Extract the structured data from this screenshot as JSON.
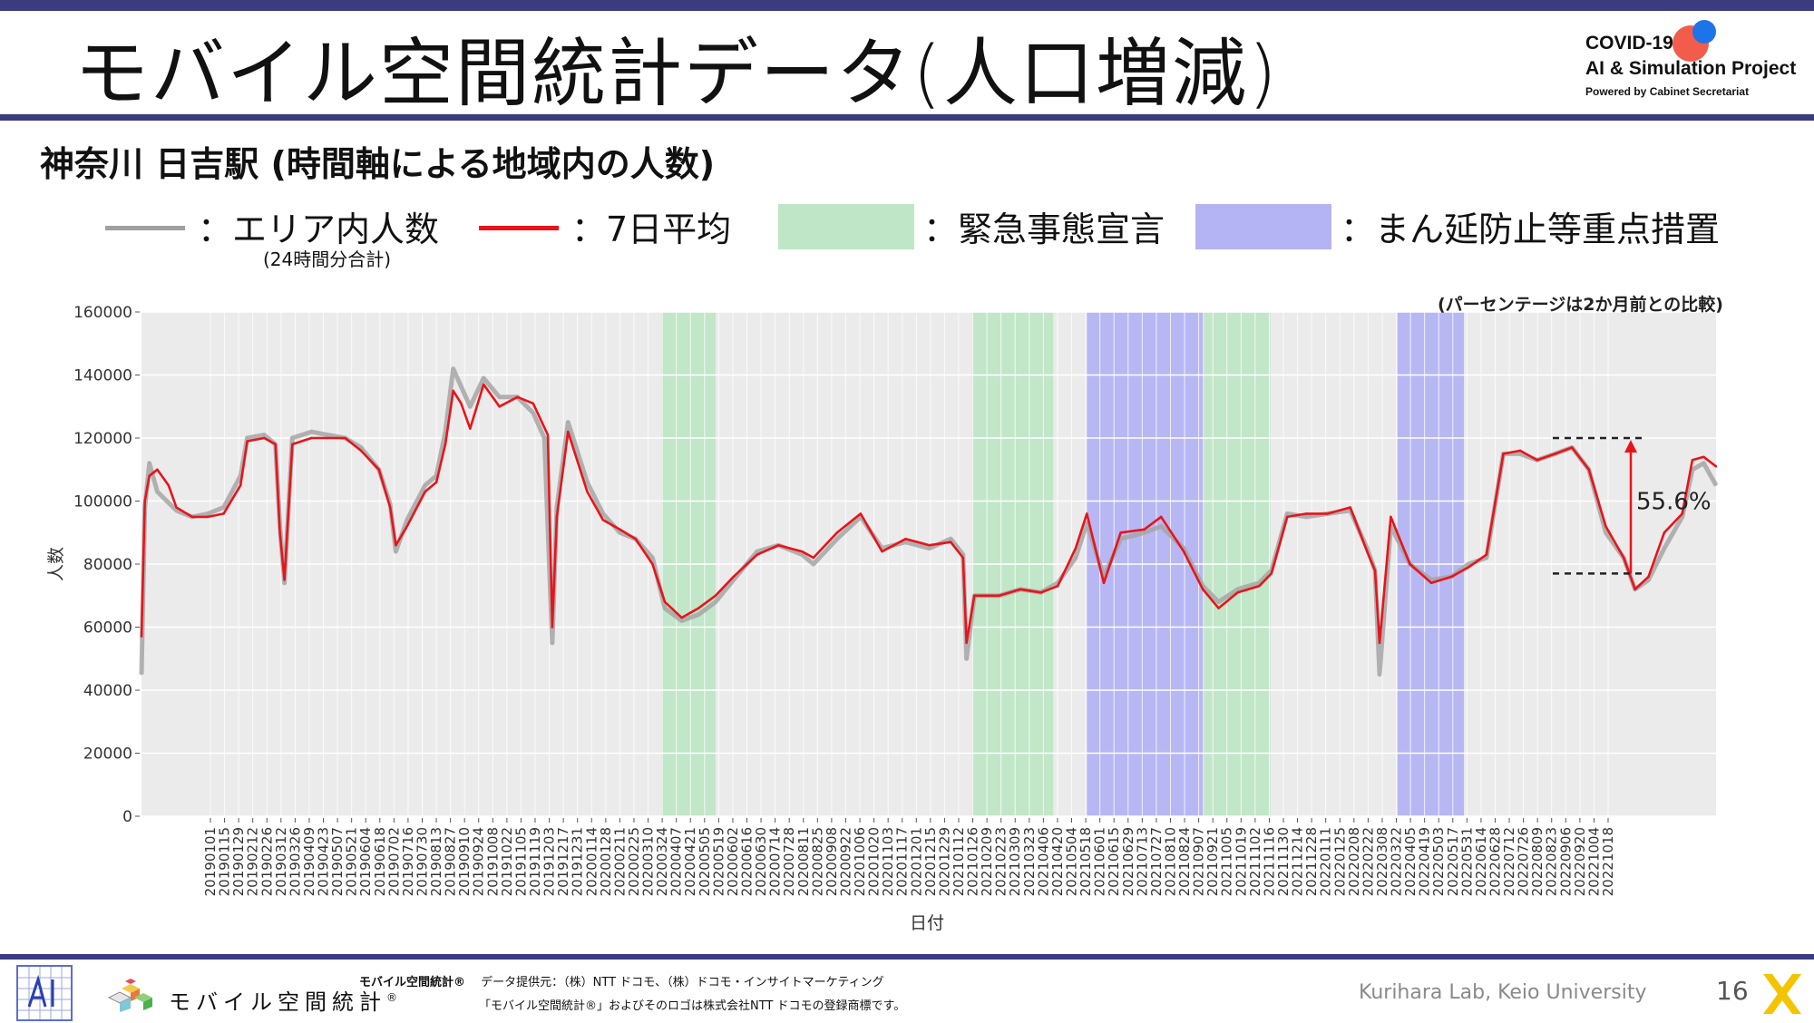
{
  "slide": {
    "title": "モバイル空間統計データ(人口増減)",
    "subtitle": "神奈川 日吉駅 (時間軸による地域内の人数)",
    "page_number": "16",
    "credit": "Kurihara Lab, Keio University"
  },
  "logo": {
    "line1": "COVID-19",
    "line2": "AI & Simulation Project",
    "line3": "Powered by Cabinet Secretariat"
  },
  "legend": {
    "area_people": "：エリア内人数",
    "area_people_note": "(24時間分合計)",
    "avg7": "：7日平均",
    "emergency": "：緊急事態宣言",
    "manen": "：まん延防止等重点措置"
  },
  "footer": {
    "mobile_logo": "モバイル空間統計",
    "mobile_logo_mark": "®",
    "provider_label": "モバイル空間統計®",
    "provider_text": "データ提供元：（株）NTT ドコモ、（株）ドコモ・インサイトマーケティング",
    "trademark_text": "「モバイル空間統計®」およびそのロゴは株式会社NTT ドコモの登録商標です。"
  },
  "colors": {
    "daily": "#a6a6a6",
    "avg": "#e8141a",
    "emergency": "#bfe6c6",
    "manen": "#b4b4f4",
    "panel": "#ebebeb",
    "accent": "#3b3b80"
  },
  "chart_data": {
    "type": "line",
    "title": "",
    "note": "(パーセンテージは2か月前との比較)",
    "xlabel": "日付",
    "ylabel": "人数",
    "ylim": [
      0,
      160000
    ],
    "yticks": [
      0,
      20000,
      40000,
      60000,
      80000,
      100000,
      120000,
      140000,
      160000
    ],
    "xrange": [
      "2019-01-01",
      "2022-10-31"
    ],
    "x_tick_labels": [
      "20190101",
      "20190115",
      "20190129",
      "20190212",
      "20190226",
      "20190312",
      "20190326",
      "20190409",
      "20190423",
      "20190507",
      "20190521",
      "20190604",
      "20190618",
      "20190702",
      "20190716",
      "20190730",
      "20190813",
      "20190827",
      "20190910",
      "20190924",
      "20191008",
      "20191022",
      "20191105",
      "20191119",
      "20191203",
      "20191217",
      "20191231",
      "20200114",
      "20200128",
      "20200211",
      "20200225",
      "20200310",
      "20200324",
      "20200407",
      "20200421",
      "20200505",
      "20200519",
      "20200602",
      "20200616",
      "20200630",
      "20200714",
      "20200728",
      "20200811",
      "20200825",
      "20200908",
      "20200922",
      "20201006",
      "20201020",
      "20201103",
      "20201117",
      "20201201",
      "20201215",
      "20201229",
      "20210112",
      "20210126",
      "20210209",
      "20210223",
      "20210309",
      "20210323",
      "20210406",
      "20210420",
      "20210504",
      "20210518",
      "20210601",
      "20210615",
      "20210629",
      "20210713",
      "20210727",
      "20210810",
      "20210824",
      "20210907",
      "20210921",
      "20211005",
      "20211019",
      "20211102",
      "20211116",
      "20211130",
      "20211214",
      "20211228",
      "20220111",
      "20220125",
      "20220208",
      "20220222",
      "20220308",
      "20220322",
      "20220405",
      "20220419",
      "20220503",
      "20220517",
      "20220531",
      "20220614",
      "20220628",
      "20220712",
      "20220726",
      "20220809",
      "20220823",
      "20220906",
      "20220920",
      "20221004",
      "20221018"
    ],
    "grid": true,
    "legend_position": "top",
    "shaded_periods": [
      {
        "type": "emergency",
        "start": "2020-04-07",
        "end": "2020-05-25"
      },
      {
        "type": "emergency",
        "start": "2021-01-08",
        "end": "2021-03-21"
      },
      {
        "type": "manen",
        "start": "2021-04-20",
        "end": "2021-08-01"
      },
      {
        "type": "emergency",
        "start": "2021-08-02",
        "end": "2021-09-30"
      },
      {
        "type": "manen",
        "start": "2022-01-21",
        "end": "2022-03-21"
      }
    ],
    "series": [
      {
        "name": "エリア内人数",
        "style": "daily",
        "x": [
          "2019-01-01",
          "2019-01-04",
          "2019-01-08",
          "2019-01-15",
          "2019-02-01",
          "2019-02-15",
          "2019-03-01",
          "2019-03-15",
          "2019-03-30",
          "2019-04-05",
          "2019-04-20",
          "2019-04-30",
          "2019-05-04",
          "2019-05-08",
          "2019-05-15",
          "2019-06-01",
          "2019-06-15",
          "2019-07-01",
          "2019-07-15",
          "2019-07-31",
          "2019-08-10",
          "2019-08-15",
          "2019-08-25",
          "2019-09-10",
          "2019-09-20",
          "2019-09-28",
          "2019-10-05",
          "2019-10-20",
          "2019-11-01",
          "2019-11-15",
          "2019-12-01",
          "2019-12-15",
          "2019-12-25",
          "2020-01-01",
          "2020-01-05",
          "2020-01-15",
          "2020-02-01",
          "2020-02-15",
          "2020-03-01",
          "2020-03-15",
          "2020-03-30",
          "2020-04-10",
          "2020-04-25",
          "2020-05-10",
          "2020-05-25",
          "2020-06-10",
          "2020-07-01",
          "2020-07-20",
          "2020-08-10",
          "2020-08-20",
          "2020-09-10",
          "2020-10-01",
          "2020-10-20",
          "2020-11-10",
          "2020-12-01",
          "2020-12-20",
          "2020-12-31",
          "2021-01-03",
          "2021-01-10",
          "2021-02-01",
          "2021-02-20",
          "2021-03-10",
          "2021-03-25",
          "2021-04-10",
          "2021-04-20",
          "2021-05-05",
          "2021-05-20",
          "2021-06-10",
          "2021-06-25",
          "2021-07-15",
          "2021-08-01",
          "2021-08-15",
          "2021-09-01",
          "2021-09-20",
          "2021-10-01",
          "2021-10-15",
          "2021-11-01",
          "2021-11-20",
          "2021-12-10",
          "2021-12-25",
          "2022-01-01",
          "2022-01-05",
          "2022-01-15",
          "2022-02-01",
          "2022-02-20",
          "2022-03-10",
          "2022-03-25",
          "2022-04-10",
          "2022-04-25",
          "2022-05-10",
          "2022-05-25",
          "2022-06-10",
          "2022-06-25",
          "2022-07-10",
          "2022-07-25",
          "2022-08-10",
          "2022-08-20",
          "2022-09-01",
          "2022-09-15",
          "2022-10-01",
          "2022-10-10",
          "2022-10-20",
          "2022-10-31"
        ],
        "y": [
          45000,
          98000,
          112000,
          103000,
          97000,
          95000,
          96000,
          98000,
          108000,
          120000,
          121000,
          118000,
          92000,
          74000,
          120000,
          122000,
          121000,
          120000,
          117000,
          110000,
          99000,
          84000,
          94000,
          105000,
          108000,
          122000,
          142000,
          130000,
          139000,
          133000,
          133000,
          128000,
          120000,
          55000,
          98000,
          125000,
          106000,
          96000,
          90000,
          88000,
          82000,
          66000,
          62000,
          64000,
          68000,
          75000,
          84000,
          86000,
          83000,
          80000,
          88000,
          95000,
          85000,
          87000,
          85000,
          88000,
          83000,
          50000,
          70000,
          70000,
          72000,
          71000,
          74000,
          82000,
          93000,
          76000,
          88000,
          90000,
          92000,
          85000,
          73000,
          68000,
          72000,
          74000,
          78000,
          96000,
          95000,
          96000,
          97000,
          85000,
          78000,
          45000,
          92000,
          80000,
          75000,
          76000,
          80000,
          82000,
          115000,
          115000,
          113000,
          115000,
          117000,
          110000,
          90000,
          82000,
          72000,
          75000,
          85000,
          95000,
          110000,
          112000,
          105000
        ]
      },
      {
        "name": "7日平均",
        "style": "avg",
        "x": [
          "2019-01-01",
          "2019-01-04",
          "2019-01-08",
          "2019-01-15",
          "2019-01-25",
          "2019-02-01",
          "2019-02-15",
          "2019-03-01",
          "2019-03-15",
          "2019-03-30",
          "2019-04-05",
          "2019-04-20",
          "2019-04-30",
          "2019-05-04",
          "2019-05-08",
          "2019-05-15",
          "2019-06-01",
          "2019-06-15",
          "2019-07-01",
          "2019-07-15",
          "2019-07-31",
          "2019-08-10",
          "2019-08-15",
          "2019-08-25",
          "2019-09-10",
          "2019-09-20",
          "2019-09-28",
          "2019-10-05",
          "2019-10-12",
          "2019-10-20",
          "2019-11-01",
          "2019-11-15",
          "2019-12-01",
          "2019-12-15",
          "2019-12-28",
          "2020-01-01",
          "2020-01-05",
          "2020-01-15",
          "2020-02-01",
          "2020-02-15",
          "2020-03-01",
          "2020-03-15",
          "2020-03-30",
          "2020-04-10",
          "2020-04-25",
          "2020-05-10",
          "2020-05-25",
          "2020-06-10",
          "2020-07-01",
          "2020-07-20",
          "2020-08-10",
          "2020-08-20",
          "2020-09-10",
          "2020-10-01",
          "2020-10-20",
          "2020-11-10",
          "2020-12-01",
          "2020-12-20",
          "2020-12-31",
          "2021-01-03",
          "2021-01-10",
          "2021-02-01",
          "2021-02-20",
          "2021-03-10",
          "2021-03-25",
          "2021-04-10",
          "2021-04-20",
          "2021-05-05",
          "2021-05-20",
          "2021-06-10",
          "2021-06-25",
          "2021-07-15",
          "2021-08-01",
          "2021-08-15",
          "2021-09-01",
          "2021-09-20",
          "2021-10-01",
          "2021-10-15",
          "2021-11-01",
          "2021-11-20",
          "2021-12-10",
          "2021-12-25",
          "2022-01-01",
          "2022-01-05",
          "2022-01-15",
          "2022-02-01",
          "2022-02-20",
          "2022-03-10",
          "2022-03-25",
          "2022-04-10",
          "2022-04-25",
          "2022-05-10",
          "2022-05-25",
          "2022-06-10",
          "2022-06-25",
          "2022-07-10",
          "2022-07-25",
          "2022-08-10",
          "2022-08-20",
          "2022-09-01",
          "2022-09-15",
          "2022-10-01",
          "2022-10-10",
          "2022-10-20",
          "2022-10-31"
        ],
        "y": [
          57000,
          100000,
          108000,
          110000,
          105000,
          98000,
          95000,
          95000,
          96000,
          105000,
          119000,
          120000,
          118000,
          90000,
          75000,
          118000,
          120000,
          120000,
          120000,
          116000,
          110000,
          98000,
          86000,
          92000,
          103000,
          106000,
          118000,
          135000,
          131000,
          123000,
          137000,
          130000,
          133000,
          131000,
          121000,
          60000,
          95000,
          122000,
          103000,
          94000,
          91000,
          88000,
          80000,
          68000,
          63000,
          66000,
          70000,
          76000,
          83000,
          86000,
          84000,
          82000,
          90000,
          96000,
          84000,
          88000,
          86000,
          87000,
          82000,
          55000,
          70000,
          70000,
          72000,
          71000,
          73000,
          85000,
          96000,
          74000,
          90000,
          91000,
          95000,
          84000,
          72000,
          66000,
          71000,
          73000,
          77000,
          95000,
          96000,
          96000,
          98000,
          84000,
          78000,
          55000,
          95000,
          80000,
          74000,
          76000,
          79000,
          83000,
          115000,
          116000,
          113000,
          115000,
          117000,
          110000,
          92000,
          82000,
          72000,
          76000,
          90000,
          96000,
          113000,
          114000,
          111000
        ]
      }
    ],
    "annotation": {
      "label": "55.6%",
      "from": 77000,
      "to": 120000
    }
  }
}
